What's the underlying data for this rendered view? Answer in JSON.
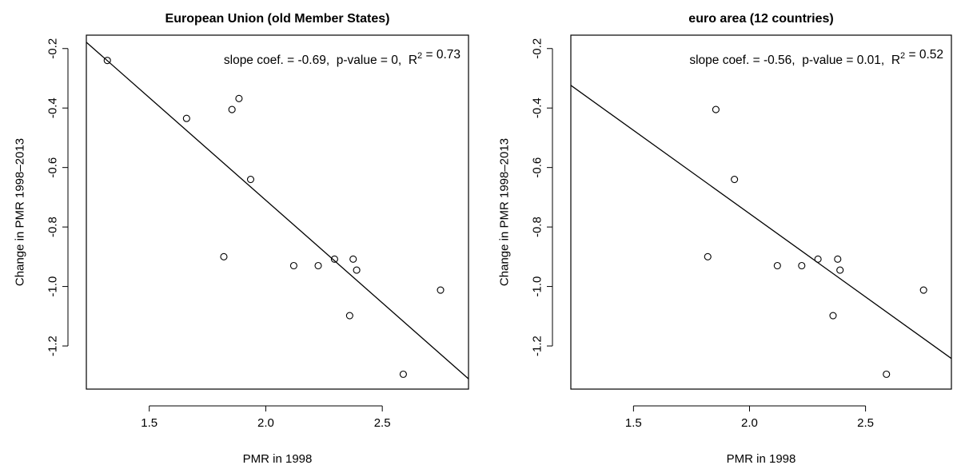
{
  "chart_data": [
    {
      "type": "scatter",
      "title": "European Union (old Member States)",
      "xlabel": "PMR in 1998",
      "ylabel": "Change in PMR 1998–2013",
      "xlim": [
        1.23,
        2.87
      ],
      "ylim": [
        -1.345,
        -0.155
      ],
      "xticks": [
        1.5,
        2.0,
        2.5
      ],
      "xtick_labels": [
        "1.5",
        "2.0",
        "2.5"
      ],
      "yticks": [
        -1.2,
        -1.0,
        -0.8,
        -0.6,
        -0.4,
        -0.2
      ],
      "ytick_labels": [
        "-1.2",
        "-1.0",
        "-0.8",
        "-0.6",
        "-0.4",
        "-0.2"
      ],
      "annotation": {
        "slope_label": "slope coef. = -0.69,",
        "p_label": "p-value = 0,",
        "r2_label": "R",
        "r2_exp": "2",
        "r2_value": " = 0.73"
      },
      "fit_line": {
        "slope": -0.69,
        "intercept": 0.67
      },
      "points": [
        {
          "x": 1.32,
          "y": -0.24
        },
        {
          "x": 1.66,
          "y": -0.435
        },
        {
          "x": 1.82,
          "y": -0.9
        },
        {
          "x": 1.855,
          "y": -0.405
        },
        {
          "x": 1.885,
          "y": -0.368
        },
        {
          "x": 1.935,
          "y": -0.64
        },
        {
          "x": 2.12,
          "y": -0.93
        },
        {
          "x": 2.225,
          "y": -0.93
        },
        {
          "x": 2.295,
          "y": -0.908
        },
        {
          "x": 2.36,
          "y": -1.098
        },
        {
          "x": 2.375,
          "y": -0.908
        },
        {
          "x": 2.39,
          "y": -0.945
        },
        {
          "x": 2.59,
          "y": -1.295
        },
        {
          "x": 2.75,
          "y": -1.012
        }
      ],
      "grid": false,
      "legend": "none"
    },
    {
      "type": "scatter",
      "title": "euro area (12 countries)",
      "xlabel": "PMR in 1998",
      "ylabel": "Change in PMR 1998–2013",
      "xlim": [
        1.23,
        2.87
      ],
      "ylim": [
        -1.345,
        -0.155
      ],
      "xticks": [
        1.5,
        2.0,
        2.5
      ],
      "xtick_labels": [
        "1.5",
        "2.0",
        "2.5"
      ],
      "yticks": [
        -1.2,
        -1.0,
        -0.8,
        -0.6,
        -0.4,
        -0.2
      ],
      "ytick_labels": [
        "-1.2",
        "-1.0",
        "-0.8",
        "-0.6",
        "-0.4",
        "-0.2"
      ],
      "annotation": {
        "slope_label": "slope coef. = -0.56,",
        "p_label": "p-value = 0.01,",
        "r2_label": "R",
        "r2_exp": "2",
        "r2_value": " = 0.52"
      },
      "fit_line": {
        "slope": -0.56,
        "intercept": 0.365
      },
      "points": [
        {
          "x": 1.82,
          "y": -0.9
        },
        {
          "x": 1.855,
          "y": -0.405
        },
        {
          "x": 1.935,
          "y": -0.64
        },
        {
          "x": 2.12,
          "y": -0.93
        },
        {
          "x": 2.225,
          "y": -0.93
        },
        {
          "x": 2.295,
          "y": -0.908
        },
        {
          "x": 2.36,
          "y": -1.098
        },
        {
          "x": 2.38,
          "y": -0.908
        },
        {
          "x": 2.39,
          "y": -0.945
        },
        {
          "x": 2.59,
          "y": -1.295
        },
        {
          "x": 2.75,
          "y": -1.012
        }
      ],
      "grid": false,
      "legend": "none"
    }
  ]
}
